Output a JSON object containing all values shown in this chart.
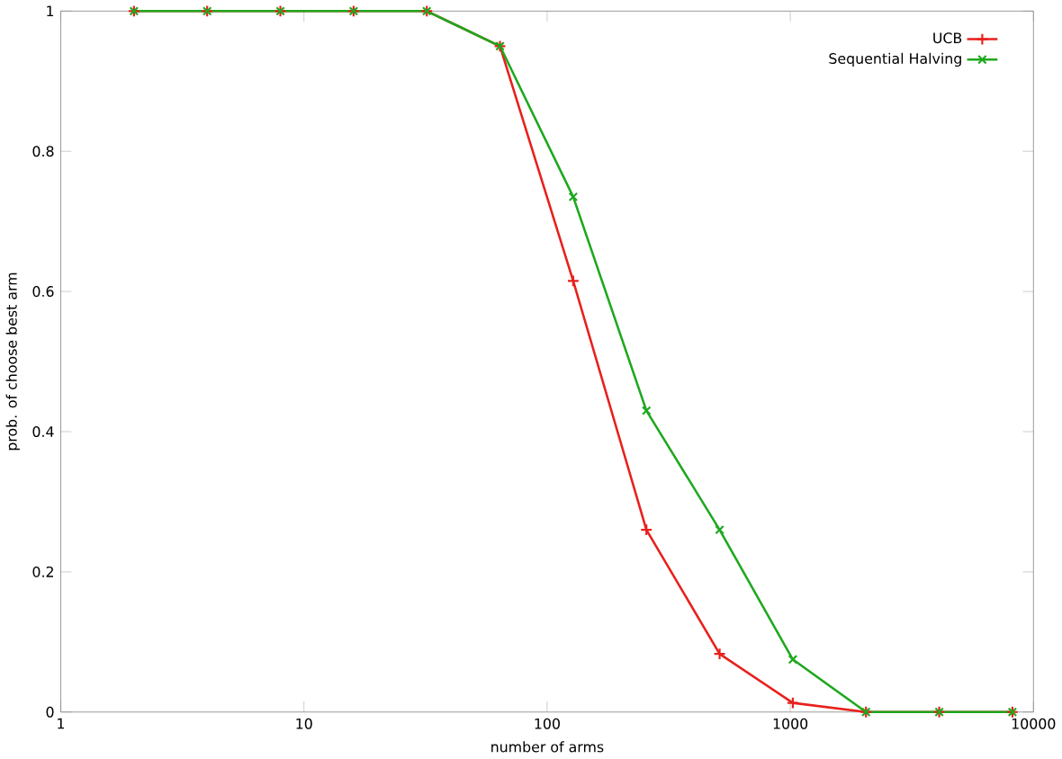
{
  "chart_data": {
    "type": "line",
    "xlabel": "number of arms",
    "ylabel": "prob. of choose best arm",
    "x": [
      2,
      4,
      8,
      16,
      32,
      64,
      128,
      256,
      512,
      1024,
      2048,
      4096,
      8192
    ],
    "series": [
      {
        "name": "UCB",
        "color": "#e8201c",
        "marker": "plus",
        "values": [
          1,
          1,
          1,
          1,
          1,
          0.95,
          0.615,
          0.26,
          0.083,
          0.013,
          0,
          0,
          0
        ]
      },
      {
        "name": "Sequential Halving",
        "color": "#1ea81e",
        "marker": "cross",
        "values": [
          1,
          1,
          1,
          1,
          1,
          0.95,
          0.735,
          0.43,
          0.26,
          0.075,
          0,
          0,
          0
        ]
      }
    ],
    "log": "x",
    "xlim": [
      1,
      10000
    ],
    "xticks": [
      1,
      10,
      100,
      1000,
      10000
    ],
    "ylim": [
      0,
      1
    ],
    "yticks": [
      0,
      0.2,
      0.4,
      0.6,
      0.8,
      1
    ],
    "legend": "top right",
    "line_style": "solid"
  }
}
